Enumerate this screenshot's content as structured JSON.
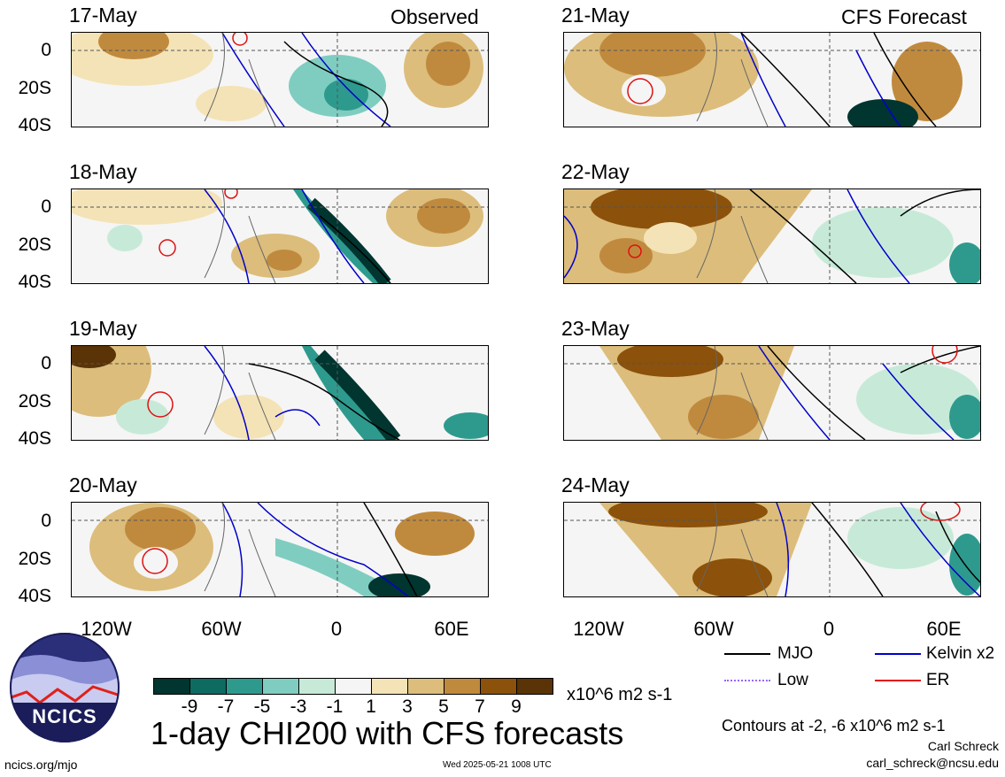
{
  "headers": {
    "left": "Observed",
    "right": "CFS Forecast"
  },
  "panels": {
    "left": [
      "17-May",
      "18-May",
      "19-May",
      "20-May"
    ],
    "right": [
      "21-May",
      "22-May",
      "23-May",
      "24-May"
    ]
  },
  "y_ticks": [
    "0",
    "20S",
    "40S"
  ],
  "x_ticks": [
    "120W",
    "60W",
    "0",
    "60E"
  ],
  "legend": {
    "mjo": "MJO",
    "kelvin": "Kelvin x2",
    "low": "Low",
    "er": "ER",
    "colors": {
      "mjo": "#000000",
      "kelvin": "#0000cc",
      "low": "#9966ff",
      "er": "#e01010"
    }
  },
  "colorbar": {
    "units": "x10^6 m2 s-1",
    "ticks": [
      "-9",
      "-7",
      "-5",
      "-3",
      "-1",
      "1",
      "3",
      "5",
      "7",
      "9"
    ],
    "colors": [
      "#01352f",
      "#0d6b62",
      "#2e9a8e",
      "#7fcdc0",
      "#c7ead8",
      "#f5f5f5",
      "#f4e3b6",
      "#dcbd7b",
      "#c08a3e",
      "#8c510a",
      "#5a3306"
    ]
  },
  "title": "1-day CHI200 with CFS forecasts",
  "contours_note": "Contours at -2, -6 x10^6 m2 s-1",
  "author": "Carl Schreck",
  "email": "carl_schreck@ncsu.edu",
  "site": "ncics.org/mjo",
  "timestamp": "Wed 2025-05-21 1008 UTC",
  "logo_text": "NCICS"
}
